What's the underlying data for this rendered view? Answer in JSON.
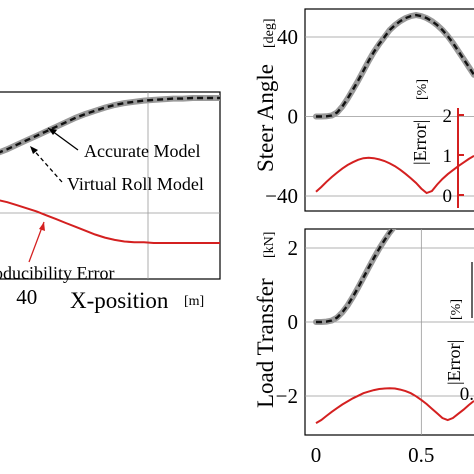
{
  "chart_data": [
    {
      "type": "line",
      "panel": "left",
      "xlabel": "X-position",
      "xunit": "[m]",
      "xlim": [
        35,
        60
      ],
      "x_ticks": [
        {
          "value": 40,
          "label": "40"
        }
      ],
      "series": [
        {
          "name": "Accurate Model",
          "style": "gray-thick",
          "x": [
            35,
            36,
            37,
            38,
            39,
            40,
            41,
            42,
            43,
            44,
            45,
            46,
            47,
            48,
            49,
            50,
            51,
            52,
            53,
            54,
            55,
            56,
            57,
            58,
            59,
            60
          ],
          "y": [
            0.05,
            0.09,
            0.14,
            0.2,
            0.27,
            0.34,
            0.41,
            0.48,
            0.55,
            0.62,
            0.69,
            0.75,
            0.8,
            0.85,
            0.89,
            0.92,
            0.94,
            0.96,
            0.97,
            0.98,
            0.99,
            0.99,
            1.0,
            1.0,
            1.0,
            1.0
          ]
        },
        {
          "name": "Virtual Roll Model",
          "style": "black-dashed",
          "x": [
            35,
            36,
            37,
            38,
            39,
            40,
            41,
            42,
            43,
            44,
            45,
            46,
            47,
            48,
            49,
            50,
            51,
            52,
            53,
            54,
            55,
            56,
            57,
            58,
            59,
            60
          ],
          "y": [
            0.05,
            0.09,
            0.14,
            0.2,
            0.27,
            0.34,
            0.41,
            0.48,
            0.55,
            0.62,
            0.69,
            0.75,
            0.8,
            0.85,
            0.89,
            0.92,
            0.94,
            0.96,
            0.97,
            0.98,
            0.99,
            0.99,
            1.0,
            1.0,
            1.0,
            1.0
          ]
        },
        {
          "name": "Reproducibility Error",
          "style": "red",
          "x": [
            35,
            36,
            37,
            38,
            39,
            40,
            41,
            42,
            43,
            44,
            45,
            46,
            47,
            48,
            49,
            50,
            51,
            52,
            53,
            54,
            55,
            56,
            57,
            58,
            59,
            60
          ],
          "y": [
            0.98,
            0.96,
            0.93,
            0.9,
            0.86,
            0.82,
            0.78,
            0.73,
            0.68,
            0.63,
            0.58,
            0.53,
            0.48,
            0.44,
            0.41,
            0.39,
            0.38,
            0.38,
            0.37,
            0.37,
            0.37,
            0.37,
            0.37,
            0.37,
            0.37,
            0.37
          ]
        }
      ],
      "annotations": [
        "Accurate Model",
        "Virtual Roll Model",
        "oducibility Error"
      ]
    },
    {
      "type": "line",
      "panel": "right-top",
      "ylabel": "Steer Angle",
      "yunit": "[deg]",
      "xlim": [
        0,
        0.75
      ],
      "ylim": [
        -48,
        57
      ],
      "y_ticks": [
        {
          "value": 40,
          "label": "40"
        },
        {
          "value": 0,
          "label": "0"
        },
        {
          "value": -40,
          "label": "−40"
        }
      ],
      "series": [
        {
          "name": "Accurate Model",
          "style": "gray-thick",
          "x": [
            0,
            0.025,
            0.05,
            0.075,
            0.1,
            0.125,
            0.15,
            0.175,
            0.2,
            0.225,
            0.25,
            0.275,
            0.3,
            0.325,
            0.35,
            0.375,
            0.4,
            0.425,
            0.45,
            0.475,
            0.5,
            0.525,
            0.55,
            0.575,
            0.6,
            0.625,
            0.65,
            0.675,
            0.7,
            0.725,
            0.75
          ],
          "y": [
            0,
            0,
            0.1,
            0.5,
            2,
            5,
            9,
            13.5,
            18,
            23,
            28,
            32.5,
            36.5,
            40,
            43.5,
            46,
            48,
            49.5,
            50.5,
            51,
            50.5,
            49.5,
            48,
            46,
            43.5,
            40.5,
            37,
            33,
            29,
            25,
            21
          ]
        },
        {
          "name": "Virtual Roll Model",
          "style": "black-dashed",
          "x": [
            0,
            0.025,
            0.05,
            0.075,
            0.1,
            0.125,
            0.15,
            0.175,
            0.2,
            0.225,
            0.25,
            0.275,
            0.3,
            0.325,
            0.35,
            0.375,
            0.4,
            0.425,
            0.45,
            0.475,
            0.5,
            0.525,
            0.55,
            0.575,
            0.6,
            0.625,
            0.65,
            0.675,
            0.7,
            0.725,
            0.75
          ],
          "y": [
            0,
            0,
            0.1,
            0.5,
            2,
            5,
            9,
            13.5,
            18,
            23,
            28,
            32.5,
            36.5,
            40,
            43.5,
            46,
            48,
            49.5,
            50.5,
            51,
            50.5,
            49.5,
            48,
            46,
            43.5,
            40.5,
            37,
            33,
            29,
            25,
            21
          ]
        }
      ]
    },
    {
      "type": "line",
      "panel": "right-top-error",
      "ylabel": "|Error|",
      "yunit": "[%]",
      "ylim": [
        -0.35,
        2.3
      ],
      "y_ticks": [
        {
          "value": 2,
          "label": "2"
        },
        {
          "value": 1,
          "label": "1"
        },
        {
          "value": 0,
          "label": "0"
        }
      ],
      "series": [
        {
          "name": "Error",
          "style": "red",
          "x": [
            0,
            0.025,
            0.05,
            0.075,
            0.1,
            0.125,
            0.15,
            0.175,
            0.2,
            0.225,
            0.25,
            0.275,
            0.3,
            0.325,
            0.35,
            0.375,
            0.4,
            0.425,
            0.45,
            0.475,
            0.5,
            0.525,
            0.55,
            0.575,
            0.6,
            0.625,
            0.65,
            0.675,
            0.7,
            0.725,
            0.75
          ],
          "y": [
            0.08,
            0.2,
            0.33,
            0.45,
            0.56,
            0.66,
            0.75,
            0.82,
            0.88,
            0.92,
            0.93,
            0.92,
            0.89,
            0.85,
            0.79,
            0.72,
            0.63,
            0.53,
            0.42,
            0.3,
            0.16,
            0.05,
            0.1,
            0.26,
            0.4,
            0.52,
            0.62,
            0.72,
            0.81,
            0.9,
            0.98
          ]
        }
      ]
    },
    {
      "type": "line",
      "panel": "right-bottom",
      "ylabel": "Load Transfer",
      "yunit": "[kN]",
      "xlabel": "",
      "xlim": [
        0,
        0.75
      ],
      "ylim": [
        -3.6,
        3.8
      ],
      "x_ticks": [
        {
          "value": 0,
          "label": "0"
        },
        {
          "value": 0.5,
          "label": "0.5"
        }
      ],
      "y_ticks": [
        {
          "value": 2,
          "label": "2"
        },
        {
          "value": 0,
          "label": "0"
        },
        {
          "value": -2,
          "label": "−2"
        }
      ],
      "series": [
        {
          "name": "Accurate Model",
          "style": "gray-thick",
          "x": [
            0,
            0.025,
            0.05,
            0.075,
            0.1,
            0.125,
            0.15,
            0.175,
            0.2,
            0.225,
            0.25,
            0.275,
            0.3,
            0.325,
            0.35,
            0.375,
            0.4,
            0.425,
            0.45,
            0.475,
            0.5,
            0.525,
            0.55,
            0.575,
            0.6,
            0.625,
            0.65,
            0.675,
            0.7,
            0.725,
            0.75
          ],
          "y": [
            0,
            0,
            0.01,
            0.04,
            0.12,
            0.26,
            0.45,
            0.68,
            0.93,
            1.2,
            1.47,
            1.73,
            1.98,
            2.21,
            2.42,
            2.6,
            2.76,
            2.9,
            3.02,
            3.12,
            3.2,
            3.26,
            3.3,
            3.32,
            3.33,
            3.33,
            3.32,
            3.3,
            3.27,
            3.24,
            3.2
          ]
        },
        {
          "name": "Virtual Roll Model",
          "style": "black-dashed",
          "x": [
            0,
            0.025,
            0.05,
            0.075,
            0.1,
            0.125,
            0.15,
            0.175,
            0.2,
            0.225,
            0.25,
            0.275,
            0.3,
            0.325,
            0.35,
            0.375,
            0.4,
            0.425,
            0.45,
            0.475,
            0.5,
            0.525,
            0.55,
            0.575,
            0.6,
            0.625,
            0.65,
            0.675,
            0.7,
            0.725,
            0.75
          ],
          "y": [
            0,
            0,
            0.01,
            0.04,
            0.12,
            0.26,
            0.45,
            0.68,
            0.93,
            1.2,
            1.47,
            1.73,
            1.98,
            2.21,
            2.42,
            2.6,
            2.76,
            2.9,
            3.02,
            3.12,
            3.2,
            3.26,
            3.3,
            3.32,
            3.33,
            3.33,
            3.32,
            3.3,
            3.27,
            3.24,
            3.2
          ]
        }
      ]
    },
    {
      "type": "line",
      "panel": "right-bottom-error",
      "ylabel": "|Error|",
      "yunit": "[%]",
      "ylim": [
        -0.35,
        2.3
      ],
      "y_ticks": [
        {
          "value": 0,
          "label": "0."
        }
      ],
      "series": [
        {
          "name": "Error",
          "style": "red",
          "x": [
            0,
            0.025,
            0.05,
            0.075,
            0.1,
            0.125,
            0.15,
            0.175,
            0.2,
            0.225,
            0.25,
            0.275,
            0.3,
            0.325,
            0.35,
            0.375,
            0.4,
            0.425,
            0.45,
            0.475,
            0.5,
            0.525,
            0.55,
            0.575,
            0.6,
            0.625,
            0.65,
            0.675,
            0.7,
            0.725,
            0.75
          ],
          "y": [
            -0.08,
            -0.02,
            0.06,
            0.14,
            0.21,
            0.28,
            0.34,
            0.4,
            0.45,
            0.5,
            0.53,
            0.56,
            0.58,
            0.59,
            0.595,
            0.59,
            0.57,
            0.54,
            0.5,
            0.44,
            0.37,
            0.29,
            0.2,
            0.11,
            0.02,
            -0.02,
            0.02,
            0.1,
            0.18,
            0.27,
            0.35
          ]
        }
      ]
    }
  ]
}
